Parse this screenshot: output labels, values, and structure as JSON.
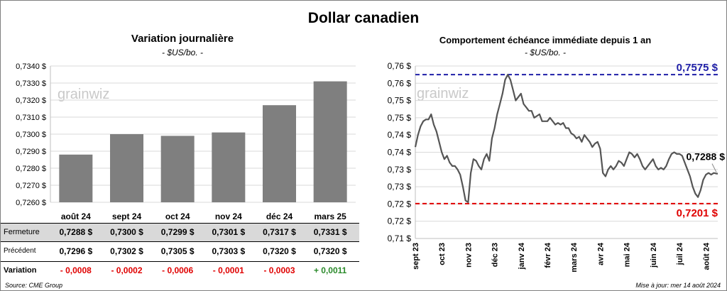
{
  "page": {
    "title": "Dollar canadien",
    "source": "Source: CME Group",
    "updated": "Mise à jour: mer 14 août 2024",
    "watermark": "grainwiz"
  },
  "colors": {
    "bar": "#7f7f7f",
    "line": "#555555",
    "high_line": "#1f1fa8",
    "low_line": "#e00000",
    "negative": "#e00000",
    "positive": "#2a8a2a",
    "row_shade": "#d9d9d9"
  },
  "table": {
    "labels": {
      "close": "Fermeture",
      "prev": "Précédent",
      "change": "Variation"
    },
    "rows": [
      {
        "close": "0,7288  $",
        "prev": "0,7296  $",
        "change": "- 0,0008",
        "sign": "neg"
      },
      {
        "close": "0,7300  $",
        "prev": "0,7302  $",
        "change": "- 0,0002",
        "sign": "neg"
      },
      {
        "close": "0,7299  $",
        "prev": "0,7305  $",
        "change": "- 0,0006",
        "sign": "neg"
      },
      {
        "close": "0,7301  $",
        "prev": "0,7303  $",
        "change": "- 0,0001",
        "sign": "neg"
      },
      {
        "close": "0,7317  $",
        "prev": "0,7320  $",
        "change": "- 0,0003",
        "sign": "neg"
      },
      {
        "close": "0,7331  $",
        "prev": "0,7320  $",
        "change": "+ 0,0011",
        "sign": "pos"
      }
    ]
  },
  "chart_data": [
    {
      "type": "bar",
      "title": "Variation  journalière",
      "subtitle": "- $US/bo. -",
      "categories": [
        "août 24",
        "sept 24",
        "oct 24",
        "nov 24",
        "déc 24",
        "mars 25"
      ],
      "values": [
        0.7288,
        0.73,
        0.7299,
        0.7301,
        0.7317,
        0.7331
      ],
      "ylim": [
        0.726,
        0.734
      ],
      "yticks": [
        0.734,
        0.733,
        0.732,
        0.731,
        0.73,
        0.729,
        0.728,
        0.727,
        0.726
      ],
      "ytick_labels": [
        "0,7340 $",
        "0,7330 $",
        "0,7320 $",
        "0,7310 $",
        "0,7300 $",
        "0,7290 $",
        "0,7280 $",
        "0,7270 $",
        "0,7260 $"
      ],
      "grid": true
    },
    {
      "type": "line",
      "title": "Comportement échéance immédiate depuis 1 an",
      "subtitle": "- $US/bo. -",
      "ylim": [
        0.71,
        0.76
      ],
      "yticks": [
        0.76,
        0.755,
        0.75,
        0.745,
        0.74,
        0.735,
        0.73,
        0.725,
        0.72,
        0.715,
        0.71
      ],
      "ytick_labels": [
        "0,76 $",
        "0,76 $",
        "0,75 $",
        "0,75 $",
        "0,74 $",
        "0,74 $",
        "0,73 $",
        "0,73 $",
        "0,72 $",
        "0,72 $",
        "0,71 $"
      ],
      "x_labels": [
        "sept 23",
        "oct 23",
        "nov 23",
        "déc 23",
        "janv 24",
        "févr 24",
        "mars 24",
        "avr 24",
        "mai 24",
        "juin 24",
        "juil 24",
        "août 24"
      ],
      "x_range": [
        0,
        11.45
      ],
      "high": {
        "value": 0.7575,
        "label": "0,7575 $"
      },
      "low": {
        "value": 0.7201,
        "label": "0,7201 $"
      },
      "last": {
        "value": 0.7288,
        "label": "0,7288 $"
      },
      "series": [
        {
          "x": [
            0,
            0.1,
            0.2,
            0.3,
            0.4,
            0.5,
            0.6,
            0.7,
            0.8,
            0.9,
            1.0,
            1.1,
            1.2,
            1.3,
            1.4,
            1.5,
            1.6,
            1.7,
            1.8,
            1.9,
            2.0,
            2.1,
            2.2,
            2.3,
            2.4,
            2.5,
            2.6,
            2.7,
            2.8,
            2.9,
            3.0,
            3.1,
            3.2,
            3.3,
            3.4,
            3.5,
            3.6,
            3.7,
            3.8,
            3.9,
            4.0,
            4.1,
            4.2,
            4.3,
            4.4,
            4.5,
            4.6,
            4.7,
            4.8,
            4.9,
            5.0,
            5.1,
            5.2,
            5.3,
            5.4,
            5.5,
            5.6,
            5.7,
            5.8,
            5.9,
            6.0,
            6.1,
            6.2,
            6.3,
            6.4,
            6.5,
            6.6,
            6.7,
            6.8,
            6.9,
            7.0,
            7.1,
            7.2,
            7.3,
            7.4,
            7.5,
            7.6,
            7.7,
            7.8,
            7.9,
            8.0,
            8.1,
            8.2,
            8.3,
            8.4,
            8.5,
            8.6,
            8.7,
            8.8,
            8.9,
            9.0,
            9.1,
            9.2,
            9.3,
            9.4,
            9.5,
            9.6,
            9.7,
            9.8,
            9.9,
            10.0,
            10.1,
            10.2,
            10.3,
            10.4,
            10.5,
            10.6,
            10.7,
            10.8,
            10.9,
            11.0,
            11.1,
            11.2,
            11.3,
            11.4,
            11.45
          ],
          "y": [
            0.7365,
            0.74,
            0.7425,
            0.744,
            0.7445,
            0.7445,
            0.746,
            0.743,
            0.741,
            0.738,
            0.735,
            0.733,
            0.734,
            0.732,
            0.731,
            0.731,
            0.73,
            0.7285,
            0.725,
            0.721,
            0.7205,
            0.729,
            0.733,
            0.7325,
            0.731,
            0.73,
            0.733,
            0.7345,
            0.7325,
            0.739,
            0.742,
            0.746,
            0.749,
            0.752,
            0.756,
            0.7575,
            0.756,
            0.753,
            0.75,
            0.751,
            0.752,
            0.749,
            0.748,
            0.747,
            0.747,
            0.745,
            0.7455,
            0.746,
            0.744,
            0.744,
            0.744,
            0.745,
            0.744,
            0.743,
            0.7435,
            0.743,
            0.7435,
            0.742,
            0.742,
            0.7405,
            0.74,
            0.739,
            0.7395,
            0.738,
            0.74,
            0.739,
            0.738,
            0.7365,
            0.7375,
            0.738,
            0.736,
            0.729,
            0.728,
            0.73,
            0.731,
            0.73,
            0.731,
            0.7325,
            0.732,
            0.731,
            0.733,
            0.735,
            0.7345,
            0.7335,
            0.7345,
            0.733,
            0.731,
            0.73,
            0.731,
            0.732,
            0.733,
            0.731,
            0.73,
            0.7305,
            0.73,
            0.731,
            0.733,
            0.7345,
            0.735,
            0.7345,
            0.7345,
            0.734,
            0.732,
            0.73,
            0.728,
            0.725,
            0.723,
            0.722,
            0.724,
            0.727,
            0.7285,
            0.729,
            0.7285,
            0.729,
            0.7288,
            0.7288
          ]
        }
      ]
    }
  ]
}
